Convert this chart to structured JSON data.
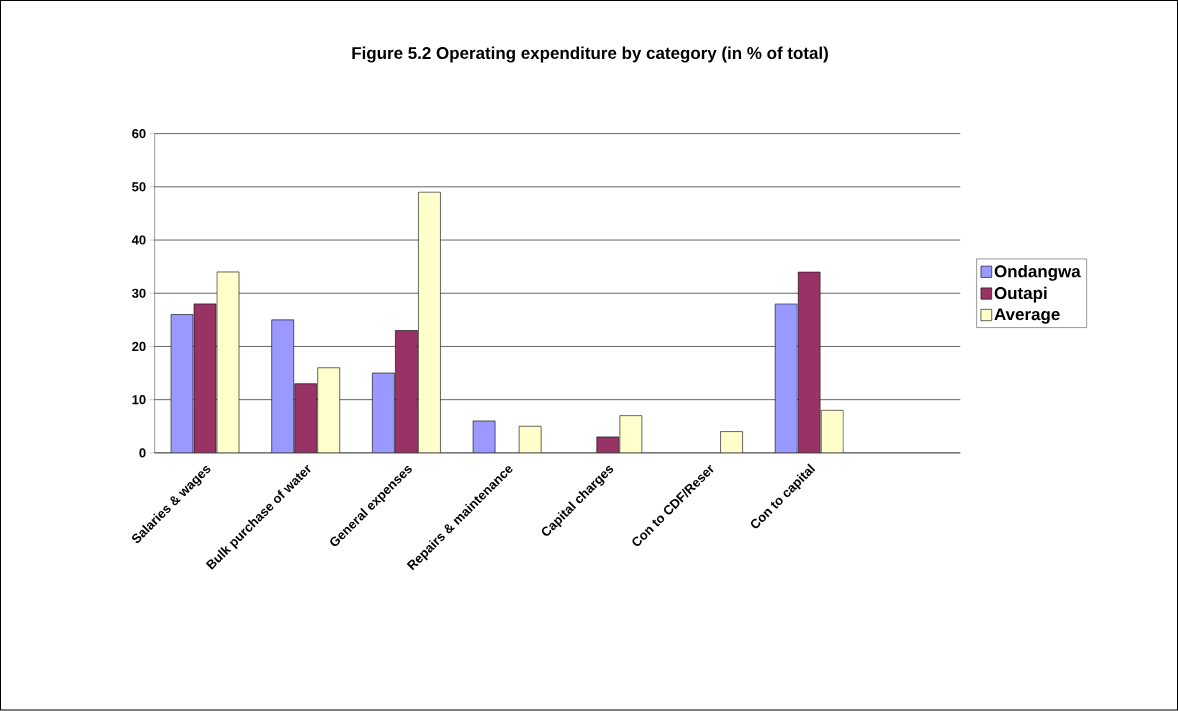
{
  "chart_data": {
    "type": "bar",
    "title": "Figure 5.2 Operating expenditure by category (in % of total)",
    "categories": [
      "Salaries & wages",
      "Bulk purchase of water",
      "General expenses",
      "Repairs & maintenance",
      "Capital charges",
      "Con to CDF/Reser",
      "Con to capital",
      null
    ],
    "series": [
      {
        "name": "Ondangwa",
        "color": "#9999ff",
        "values": [
          26,
          25,
          15,
          6,
          null,
          null,
          28,
          null
        ]
      },
      {
        "name": "Outapi",
        "color": "#993366",
        "values": [
          28,
          13,
          23,
          null,
          3,
          null,
          34,
          null
        ]
      },
      {
        "name": "Average",
        "color": "#ffffcc",
        "values": [
          34,
          16,
          49,
          5,
          7,
          4,
          8,
          null
        ]
      }
    ],
    "ylim": [
      0,
      60
    ],
    "yticks": [
      0,
      10,
      20,
      30,
      40,
      50,
      60
    ],
    "grid": "y",
    "legend": "right"
  }
}
